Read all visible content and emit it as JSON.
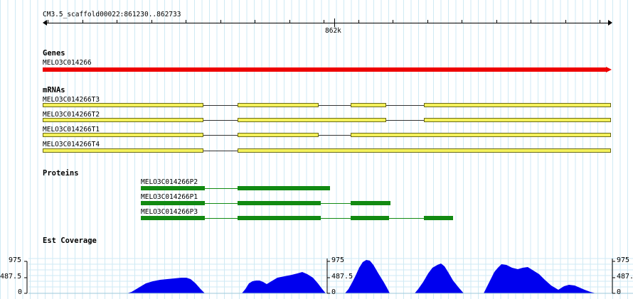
{
  "ruler": {
    "location": "CM3.5_scaffold00022:861230..862733",
    "center_label": "862k"
  },
  "tracks": {
    "genes": {
      "title": "Genes",
      "items": [
        {
          "label": "MELO3C014266",
          "color": "#ee0000"
        }
      ]
    },
    "mrnas": {
      "title": "mRNAs",
      "exon_color": "#f4f15b",
      "items": [
        {
          "label": "MELO3C014266T3"
        },
        {
          "label": "MELO3C014266T2"
        },
        {
          "label": "MELO3C014266T1"
        },
        {
          "label": "MELO3C014266T4"
        }
      ]
    },
    "proteins": {
      "title": "Proteins",
      "color": "#118a11",
      "items": [
        {
          "label": "MELO3C014266P2"
        },
        {
          "label": "MELO3C014266P1"
        },
        {
          "label": "MELO3C014266P3"
        }
      ]
    },
    "coverage": {
      "title": "Est Coverage",
      "color": "#0000ee",
      "axis_max": "975",
      "axis_mid": "487.5",
      "axis_min": "0"
    }
  }
}
